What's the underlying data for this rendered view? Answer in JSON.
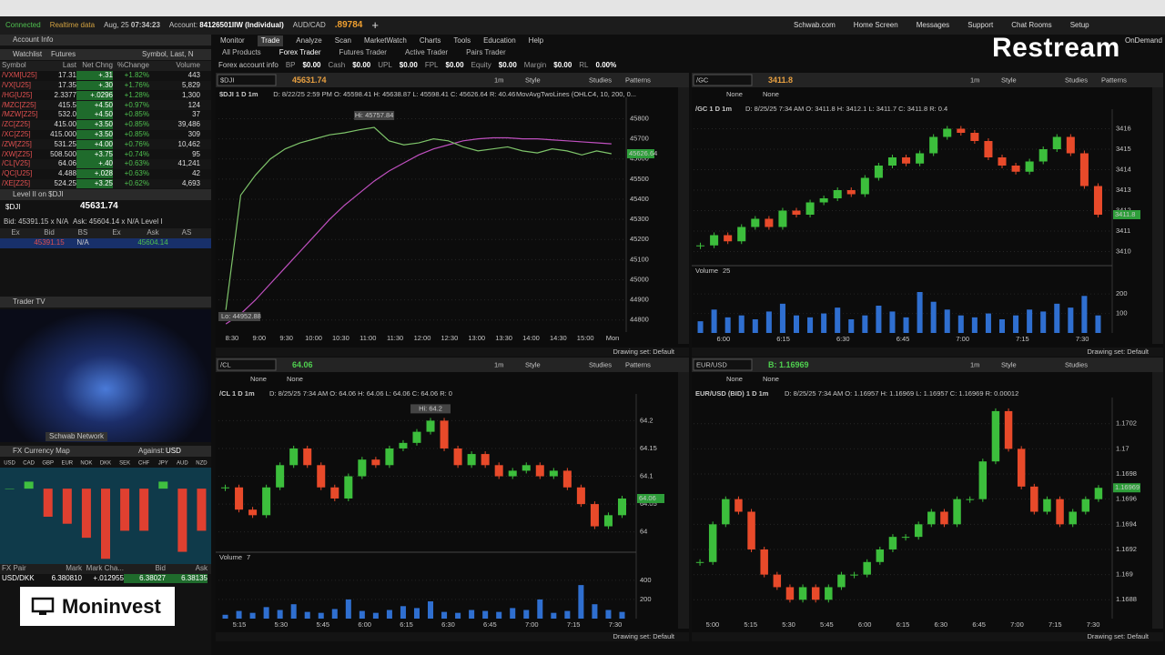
{
  "top_bar": {
    "status": "Connected",
    "feed": "Realtime data",
    "date": "Aug, 25",
    "time": "07:34:23",
    "account_label": "Account:",
    "account": "84126501IIW (Individual)",
    "pair": "AUD/CAD",
    "pair_price": ".89784",
    "links": [
      "Schwab.com",
      "Home Screen",
      "Messages",
      "Support",
      "Chat Rooms",
      "Setup"
    ],
    "on_demand": "OnDemand"
  },
  "menu": {
    "tabs": [
      "Monitor",
      "Trade",
      "Analyze",
      "Scan",
      "MarketWatch",
      "Charts",
      "Tools",
      "Education",
      "Help"
    ],
    "sub_tabs": [
      "All Products",
      "Forex Trader",
      "Futures Trader",
      "Active Trader",
      "Pairs Trader"
    ]
  },
  "account_info": {
    "title": "Forex account info",
    "fields": [
      {
        "label": "BP",
        "value": "$0.00"
      },
      {
        "label": "Cash",
        "value": "$0.00"
      },
      {
        "label": "UPL",
        "value": "$0.00"
      },
      {
        "label": "FPL",
        "value": "$0.00"
      },
      {
        "label": "Equity",
        "value": "$0.00"
      },
      {
        "label": "Margin",
        "value": "$0.00"
      },
      {
        "label": "RL",
        "value": "0.00%"
      }
    ]
  },
  "left_panel": {
    "account_header": "Account Info",
    "watchlist": {
      "title": "Watchlist",
      "list": "Futures",
      "search": "Symbol, Last, N",
      "columns": [
        "Symbol",
        "Last",
        "Net Chng",
        "%Change",
        "Volume"
      ],
      "rows": [
        [
          "/VXM[U25]",
          "17.31",
          "+.31",
          "+1.82%",
          "443"
        ],
        [
          "/VX[U25]",
          "17.35",
          "+.30",
          "+1.76%",
          "5,829"
        ],
        [
          "/HG[U25]",
          "2.3377",
          "+.0296",
          "+1.28%",
          "1,300"
        ],
        [
          "/MZC[Z25]",
          "415.5",
          "+4.50",
          "+0.97%",
          "124"
        ],
        [
          "/MZW[Z25]",
          "532.0",
          "+4.50",
          "+0.85%",
          "37"
        ],
        [
          "/ZC[Z25]",
          "415.00",
          "+3.50",
          "+0.85%",
          "39,486"
        ],
        [
          "/XC[Z25]",
          "415.000",
          "+3.50",
          "+0.85%",
          "309"
        ],
        [
          "/ZW[Z25]",
          "531.25",
          "+4.00",
          "+0.76%",
          "10,462"
        ],
        [
          "/XW[Z25]",
          "508.500",
          "+3.75",
          "+0.74%",
          "95"
        ],
        [
          "/CL[V25]",
          "64.06",
          "+.40",
          "+0.63%",
          "41,241"
        ],
        [
          "/QC[U25]",
          "4.488",
          "+.028",
          "+0.63%",
          "42"
        ],
        [
          "/XE[Z25]",
          "524.25",
          "+3.25",
          "+0.62%",
          "4,693"
        ]
      ]
    },
    "level2": {
      "title": "Level II on $DJI",
      "symbol": "$DJI",
      "price": "45631.74",
      "bid": "Bid: 45391.15 x N/A",
      "ask": "Ask: 45604.14 x N/A",
      "tab": "Level I",
      "columns": [
        "Ex",
        "Bid",
        "BS",
        "Ex",
        "Ask",
        "AS"
      ],
      "row": [
        "45391.15",
        "N/A",
        "45604.14"
      ]
    },
    "trader_tv": {
      "title": "Trader TV",
      "channel": "Schwab Network"
    },
    "fx_map": {
      "title": "FX Currency Map",
      "against_label": "Against:",
      "against": "USD",
      "currencies": [
        "USD",
        "CAD",
        "GBP",
        "EUR",
        "NOK",
        "DKK",
        "SEK",
        "CHF",
        "JPY",
        "AUD",
        "NZD"
      ],
      "values": [
        0,
        0.05,
        -0.2,
        -0.25,
        -0.35,
        -0.5,
        -0.3,
        -0.3,
        0.05,
        -0.45,
        -0.3
      ],
      "ylim": [
        -0.55,
        0.15
      ]
    },
    "fx_table": {
      "columns": [
        "FX Pair",
        "Mark",
        "Mark Cha...",
        "Bid",
        "Ask"
      ],
      "rows": [
        [
          "USD/DKK",
          "6.380810",
          "+.012955",
          "6.38027",
          "6.38135"
        ]
      ]
    }
  },
  "overlays": {
    "restream": "Restream",
    "moninvest": "Moninvest"
  },
  "charts": [
    {
      "symbol": "$DJI",
      "price": "45631.74",
      "label": "$DJI 1 D 1m",
      "info": "D: 8/22/25 2:59 PM   O: 45598.41   H: 45638.87   L: 45598.41   C: 45626.64   R: 40.46",
      "study": "MovAvgTwoLines (OHLC4, 10, 200, 0...",
      "style": "line",
      "color": "#7ec46a",
      "ma_color": "#c050c0",
      "values": [
        44850,
        45420,
        45520,
        45600,
        45650,
        45680,
        45700,
        45720,
        45730,
        45745,
        45757,
        45690,
        45670,
        45680,
        45700,
        45690,
        45660,
        45640,
        45650,
        45660,
        45640,
        45630,
        45650,
        45640,
        45620,
        45640,
        45626
      ],
      "ma": [
        44780,
        44830,
        44900,
        44980,
        45060,
        45140,
        45220,
        45300,
        45370,
        45430,
        45490,
        45540,
        45580,
        45620,
        45650,
        45670,
        45690,
        45700,
        45705,
        45705,
        45700,
        45700,
        45695,
        45690,
        45685,
        45680,
        45675
      ],
      "ylim": [
        44740,
        45870
      ],
      "yticks": [
        44800,
        44900,
        45000,
        45100,
        45200,
        45300,
        45400,
        45500,
        45600,
        45700,
        45800
      ],
      "xticks": [
        "8:30",
        "9:00",
        "9:30",
        "10:00",
        "10:30",
        "11:00",
        "11:30",
        "12:00",
        "12:30",
        "13:00",
        "13:30",
        "14:00",
        "14:30",
        "15:00",
        "Mon"
      ],
      "last_label": "45626.64",
      "hi_label": "Hi: 45757.84",
      "lo_label": "Lo: 44952.88",
      "tools": [
        "1m",
        "Style",
        "Studies",
        "Patterns"
      ],
      "drawing_set": "Drawing set: Default"
    },
    {
      "symbol": "/GC",
      "price": "3411.8",
      "label": "/GC 1 D 1m",
      "info": "D: 8/25/25 7:34 AM   O: 3411.8   H: 3412.1   L: 3411.7   C: 3411.8   R: 0.4",
      "style": "candle",
      "links": [
        "None",
        "None"
      ],
      "values": [
        3410.3,
        3410.8,
        3410.5,
        3411.2,
        3411.6,
        3411.2,
        3412.0,
        3411.8,
        3412.4,
        3412.6,
        3413.0,
        3412.8,
        3413.6,
        3414.2,
        3414.6,
        3414.3,
        3414.8,
        3415.6,
        3416.0,
        3415.8,
        3415.4,
        3414.6,
        3414.2,
        3413.9,
        3414.4,
        3415.0,
        3415.6,
        3414.8,
        3413.2,
        3411.8
      ],
      "ylim": [
        3409.4,
        3416.6
      ],
      "yticks": [
        3410,
        3411,
        3412,
        3413,
        3414,
        3415,
        3416
      ],
      "xticks": [
        "6:00",
        "6:15",
        "6:30",
        "6:45",
        "7:00",
        "7:15",
        "7:30"
      ],
      "volume_label": "Volume",
      "volume_count": "25",
      "volume": [
        60,
        120,
        80,
        90,
        70,
        110,
        150,
        90,
        80,
        100,
        130,
        70,
        90,
        140,
        110,
        80,
        210,
        160,
        120,
        90,
        80,
        100,
        70,
        90,
        120,
        110,
        150,
        130,
        190,
        90
      ],
      "volume_ylim": [
        0,
        280
      ],
      "volume_ticks": [
        100,
        200
      ],
      "last_label": "3411.8",
      "tools": [
        "1m",
        "Style",
        "Studies",
        "Patterns"
      ],
      "drawing_set": "Drawing set: Default"
    },
    {
      "symbol": "/CL",
      "price": "64.06",
      "label": "/CL 1 D 1m",
      "info": "D: 8/25/25 7:34 AM   O: 64.06   H: 64.06   L: 64.06   C: 64.06   R: 0",
      "style": "candle",
      "links": [
        "None",
        "None"
      ],
      "values": [
        64.08,
        64.04,
        64.03,
        64.08,
        64.12,
        64.15,
        64.12,
        64.08,
        64.06,
        64.1,
        64.13,
        64.12,
        64.15,
        64.16,
        64.18,
        64.2,
        64.15,
        64.12,
        64.14,
        64.12,
        64.1,
        64.11,
        64.12,
        64.1,
        64.11,
        64.08,
        64.05,
        64.01,
        64.03,
        64.06
      ],
      "ylim": [
        63.97,
        64.235
      ],
      "yticks": [
        64,
        64.05,
        64.1,
        64.15,
        64.2
      ],
      "xticks": [
        "5:15",
        "5:30",
        "5:45",
        "6:00",
        "6:15",
        "6:30",
        "6:45",
        "7:00",
        "7:15",
        "7:30"
      ],
      "volume_label": "Volume",
      "volume_count": "7",
      "volume": [
        40,
        80,
        60,
        120,
        90,
        150,
        70,
        60,
        100,
        200,
        80,
        60,
        90,
        130,
        110,
        180,
        70,
        60,
        90,
        80,
        70,
        110,
        90,
        200,
        60,
        80,
        350,
        150,
        90,
        70
      ],
      "volume_ylim": [
        0,
        560
      ],
      "volume_ticks": [
        200,
        400
      ],
      "last_label": "64.06",
      "hi_label": "Hi: 64.2",
      "tools": [
        "1m",
        "Style",
        "Studies",
        "Patterns"
      ],
      "drawing_set": "Drawing set: Default"
    },
    {
      "symbol": "EUR/USD",
      "price": "B: 1.16969",
      "label": "EUR/USD (BID) 1 D 1m",
      "info": "D: 8/25/25 7:34 AM   O: 1.16957   H: 1.16969   L: 1.16957   C: 1.16969   R: 0.00012",
      "style": "candle",
      "links": [
        "None",
        "None"
      ],
      "values": [
        1.1691,
        1.1694,
        1.1696,
        1.1695,
        1.1692,
        1.169,
        1.1689,
        1.1688,
        1.1689,
        1.1688,
        1.1689,
        1.169,
        1.169,
        1.1691,
        1.1692,
        1.1693,
        1.1693,
        1.1694,
        1.1695,
        1.1694,
        1.1696,
        1.1696,
        1.1699,
        1.1703,
        1.17,
        1.1697,
        1.1695,
        1.1696,
        1.1694,
        1.1695,
        1.1696,
        1.16969
      ],
      "ylim": [
        1.16865,
        1.17035
      ],
      "yticks": [
        1.1688,
        1.169,
        1.1692,
        1.1694,
        1.1696,
        1.1698,
        1.17,
        1.1702
      ],
      "xticks": [
        "5:00",
        "5:15",
        "5:30",
        "5:45",
        "6:00",
        "6:15",
        "6:30",
        "6:45",
        "7:00",
        "7:15",
        "7:30"
      ],
      "last_label": "1.16969",
      "tools": [
        "1m",
        "Style",
        "Studies"
      ],
      "drawing_set": "Drawing set: Default"
    }
  ]
}
